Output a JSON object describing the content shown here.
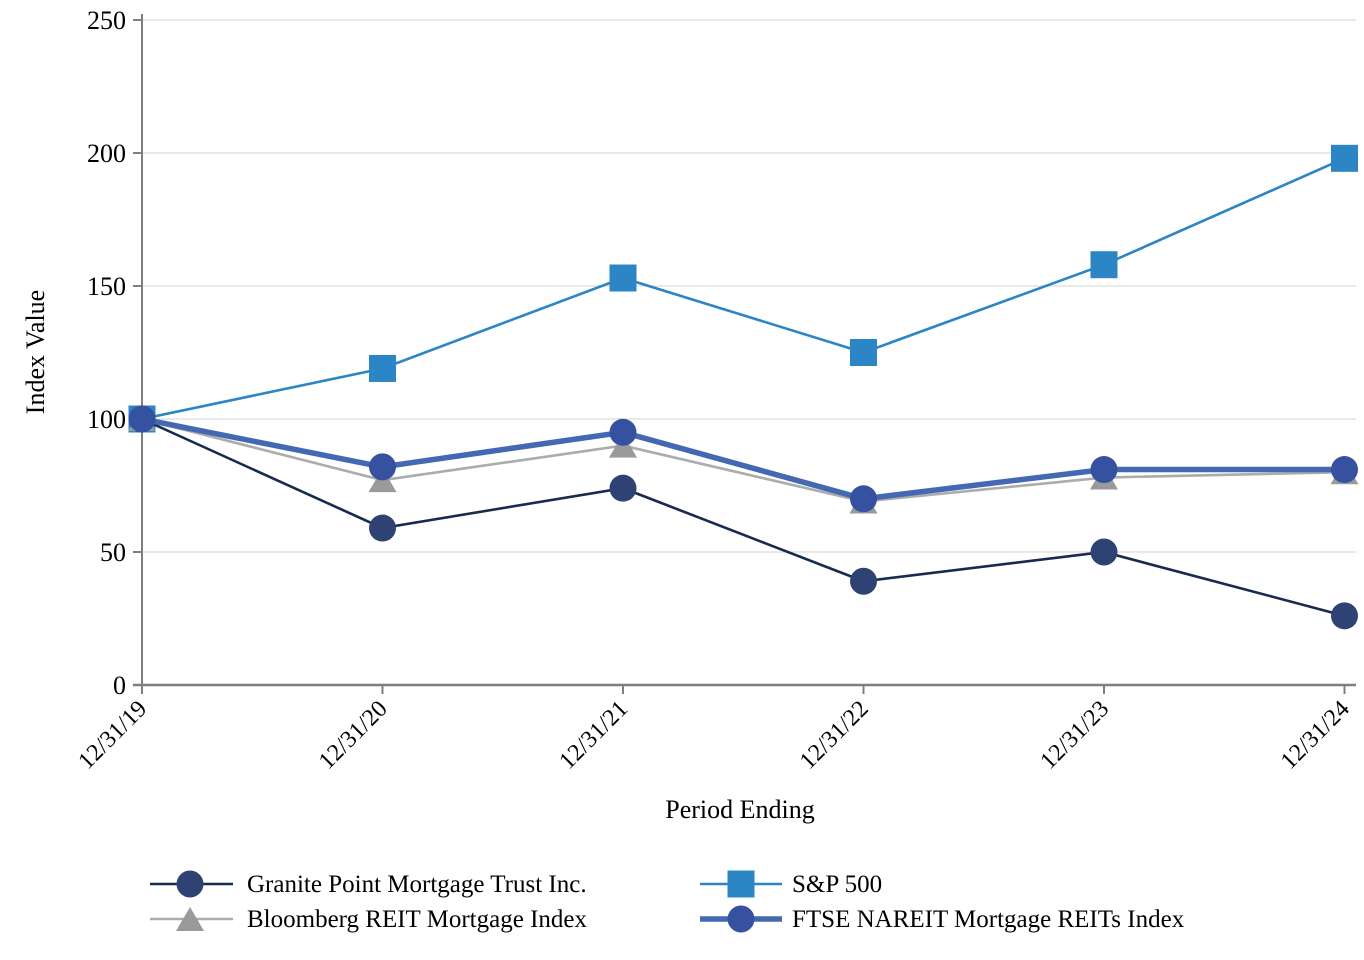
{
  "chart_data": {
    "type": "line",
    "title": "",
    "xlabel": "Period Ending",
    "ylabel": "Index Value",
    "x_categories": [
      "12/31/19",
      "12/31/20",
      "12/31/21",
      "12/31/22",
      "12/31/23",
      "12/31/24"
    ],
    "y_ticks": [
      0,
      50,
      100,
      150,
      200,
      250
    ],
    "y_tick_labels": [
      "0",
      "50",
      "100",
      "150",
      "200",
      "250"
    ],
    "ylim": [
      0,
      250
    ],
    "grid": "horizontal-only",
    "legend_position": "bottom-two-columns",
    "axis_color": "#7f7f7f",
    "gridline_color": "#e2e2e2",
    "series": [
      {
        "name": "Granite Point Mortgage Trust Inc.",
        "marker": "circle",
        "line_color": "#172a50",
        "marker_color": "#2e4374",
        "values": [
          100,
          59,
          74,
          39,
          50,
          26
        ]
      },
      {
        "name": "Bloomberg REIT Mortgage Index",
        "marker": "triangle",
        "line_color": "#acacac",
        "marker_color": "#9a9a9a",
        "values": [
          100,
          77,
          90,
          69,
          78,
          80
        ]
      },
      {
        "name": "S&P 500",
        "marker": "square",
        "line_color": "#2c85c4",
        "marker_color": "#2c85c4",
        "values": [
          100,
          119,
          153,
          125,
          158,
          198
        ]
      },
      {
        "name": "FTSE NAREIT Mortgage REITs Index",
        "marker": "circle",
        "line_color": "#4468b1",
        "marker_color": "#36519f",
        "values": [
          100,
          82,
          95,
          70,
          81,
          81
        ]
      }
    ]
  }
}
